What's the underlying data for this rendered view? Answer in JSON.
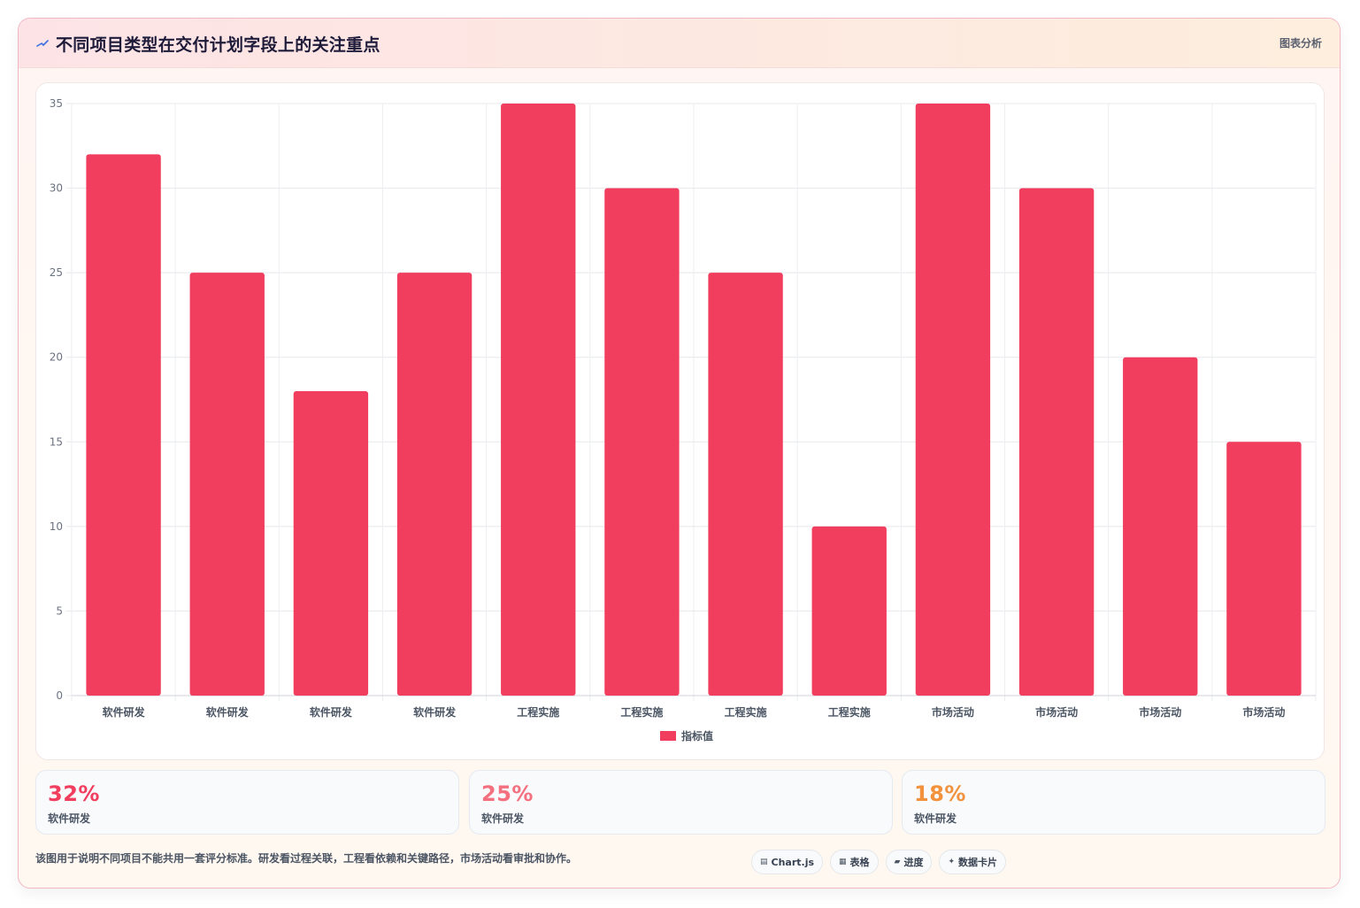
{
  "header": {
    "icon": "trend-line-icon",
    "title": "不同项目类型在交付计划字段上的关注重点",
    "badge": "图表分析"
  },
  "colors": {
    "bar": "#f13d5e",
    "kpi_1": "#f13d5e",
    "kpi_2": "#f4707f",
    "kpi_3": "#f2923d"
  },
  "chart_data": {
    "type": "bar",
    "categories": [
      "软件研发",
      "软件研发",
      "软件研发",
      "软件研发",
      "工程实施",
      "工程实施",
      "工程实施",
      "工程实施",
      "市场活动",
      "市场活动",
      "市场活动",
      "市场活动"
    ],
    "series": [
      {
        "name": "指标值",
        "values": [
          32,
          25,
          18,
          25,
          35,
          30,
          25,
          10,
          35,
          30,
          20,
          15
        ]
      }
    ],
    "title": "",
    "xlabel": "",
    "ylabel": "",
    "ylim": [
      0,
      35
    ],
    "yticks": [
      0,
      5,
      10,
      15,
      20,
      25,
      30,
      35
    ],
    "grid": true,
    "legend_position": "bottom"
  },
  "kpis": [
    {
      "value": "32%",
      "label": "软件研发"
    },
    {
      "value": "25%",
      "label": "软件研发"
    },
    {
      "value": "18%",
      "label": "软件研发"
    }
  ],
  "footer": {
    "note": "该图用于说明不同项目不能共用一套评分标准。研发看过程关联，工程看依赖和关键路径，市场活动看审批和协作。",
    "tags": [
      {
        "icon": "▤",
        "label": "Chart.js"
      },
      {
        "icon": "▦",
        "label": "表格"
      },
      {
        "icon": "▰",
        "label": "进度"
      },
      {
        "icon": "✦",
        "label": "数据卡片"
      }
    ]
  }
}
